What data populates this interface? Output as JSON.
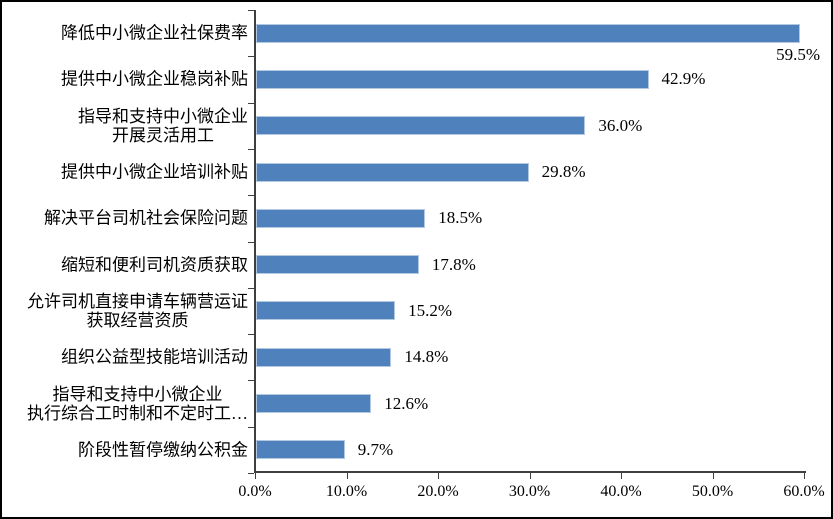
{
  "chart_data": {
    "type": "bar",
    "orientation": "horizontal",
    "title": "",
    "xlabel": "",
    "ylabel": "",
    "xlim": [
      0,
      60
    ],
    "x_tick_labels": [
      "0.0%",
      "10.0%",
      "20.0%",
      "30.0%",
      "40.0%",
      "50.0%",
      "60.0%"
    ],
    "x_tick_values": [
      0,
      10,
      20,
      30,
      40,
      50,
      60
    ],
    "grid": false,
    "legend": "none",
    "bar_color": "#4F81BD",
    "bar_edge_color": "#B4C8E2",
    "axis_color": "#3F3F3F",
    "rows": [
      {
        "label_lines": [
          "降低中小微企业社保费率"
        ],
        "value": 59.5,
        "data_label": "59.5%",
        "label_below_bar": true
      },
      {
        "label_lines": [
          "提供中小微企业稳岗补贴"
        ],
        "value": 42.9,
        "data_label": "42.9%"
      },
      {
        "label_lines": [
          "指导和支持中小微企业",
          "开展灵活用工"
        ],
        "value": 36.0,
        "data_label": "36.0%"
      },
      {
        "label_lines": [
          "提供中小微企业培训补贴"
        ],
        "value": 29.8,
        "data_label": "29.8%"
      },
      {
        "label_lines": [
          "解决平台司机社会保险问题"
        ],
        "value": 18.5,
        "data_label": "18.5%"
      },
      {
        "label_lines": [
          "缩短和便利司机资质获取"
        ],
        "value": 17.8,
        "data_label": "17.8%"
      },
      {
        "label_lines": [
          "允许司机直接申请车辆营运证",
          "获取经营资质"
        ],
        "value": 15.2,
        "data_label": "15.2%"
      },
      {
        "label_lines": [
          "组织公益型技能培训活动"
        ],
        "value": 14.8,
        "data_label": "14.8%"
      },
      {
        "label_lines": [
          "指导和支持中小微企业",
          "执行综合工时制和不定时工…"
        ],
        "value": 12.6,
        "data_label": "12.6%"
      },
      {
        "label_lines": [
          "阶段性暂停缴纳公积金"
        ],
        "value": 9.7,
        "data_label": "9.7%"
      }
    ]
  }
}
